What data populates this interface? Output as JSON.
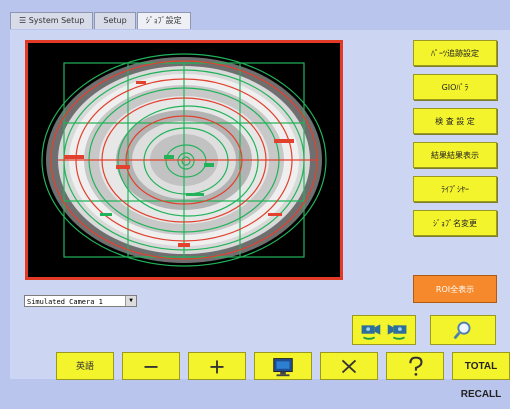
{
  "tabs": [
    {
      "label": "System Setup"
    },
    {
      "label": "Setup"
    },
    {
      "label": "ｼﾞｮﾌﾞ設定"
    }
  ],
  "side_buttons": [
    {
      "label": "ﾊﾟｰﾂ追跡設定"
    },
    {
      "label": "GIOﾊﾟﾗ"
    },
    {
      "label": "検 査 設 定"
    },
    {
      "label": "結果結果表示"
    },
    {
      "label": "ﾗｲﾌﾞｼﾔｰ"
    },
    {
      "label": "ｼﾞｮﾌﾞ名変更"
    }
  ],
  "roi_button": {
    "label": "ROI全表示"
  },
  "camera_select": {
    "value": "Simulated Camera 1"
  },
  "bottom_buttons": {
    "language": "英語",
    "total_recall": "TOTAL RECALL"
  },
  "colors": {
    "accent_yellow": "#f4f42c",
    "viewer_border": "#e33a26",
    "overlay_green": "#22b35a",
    "overlay_red": "#e2412e",
    "orange_button": "#f5892c"
  },
  "icons": [
    "list-icon",
    "camera-left-icon",
    "camera-right-icon",
    "magnifier-icon",
    "minus-icon",
    "plus-icon",
    "monitor-icon",
    "x-icon",
    "help-icon"
  ]
}
